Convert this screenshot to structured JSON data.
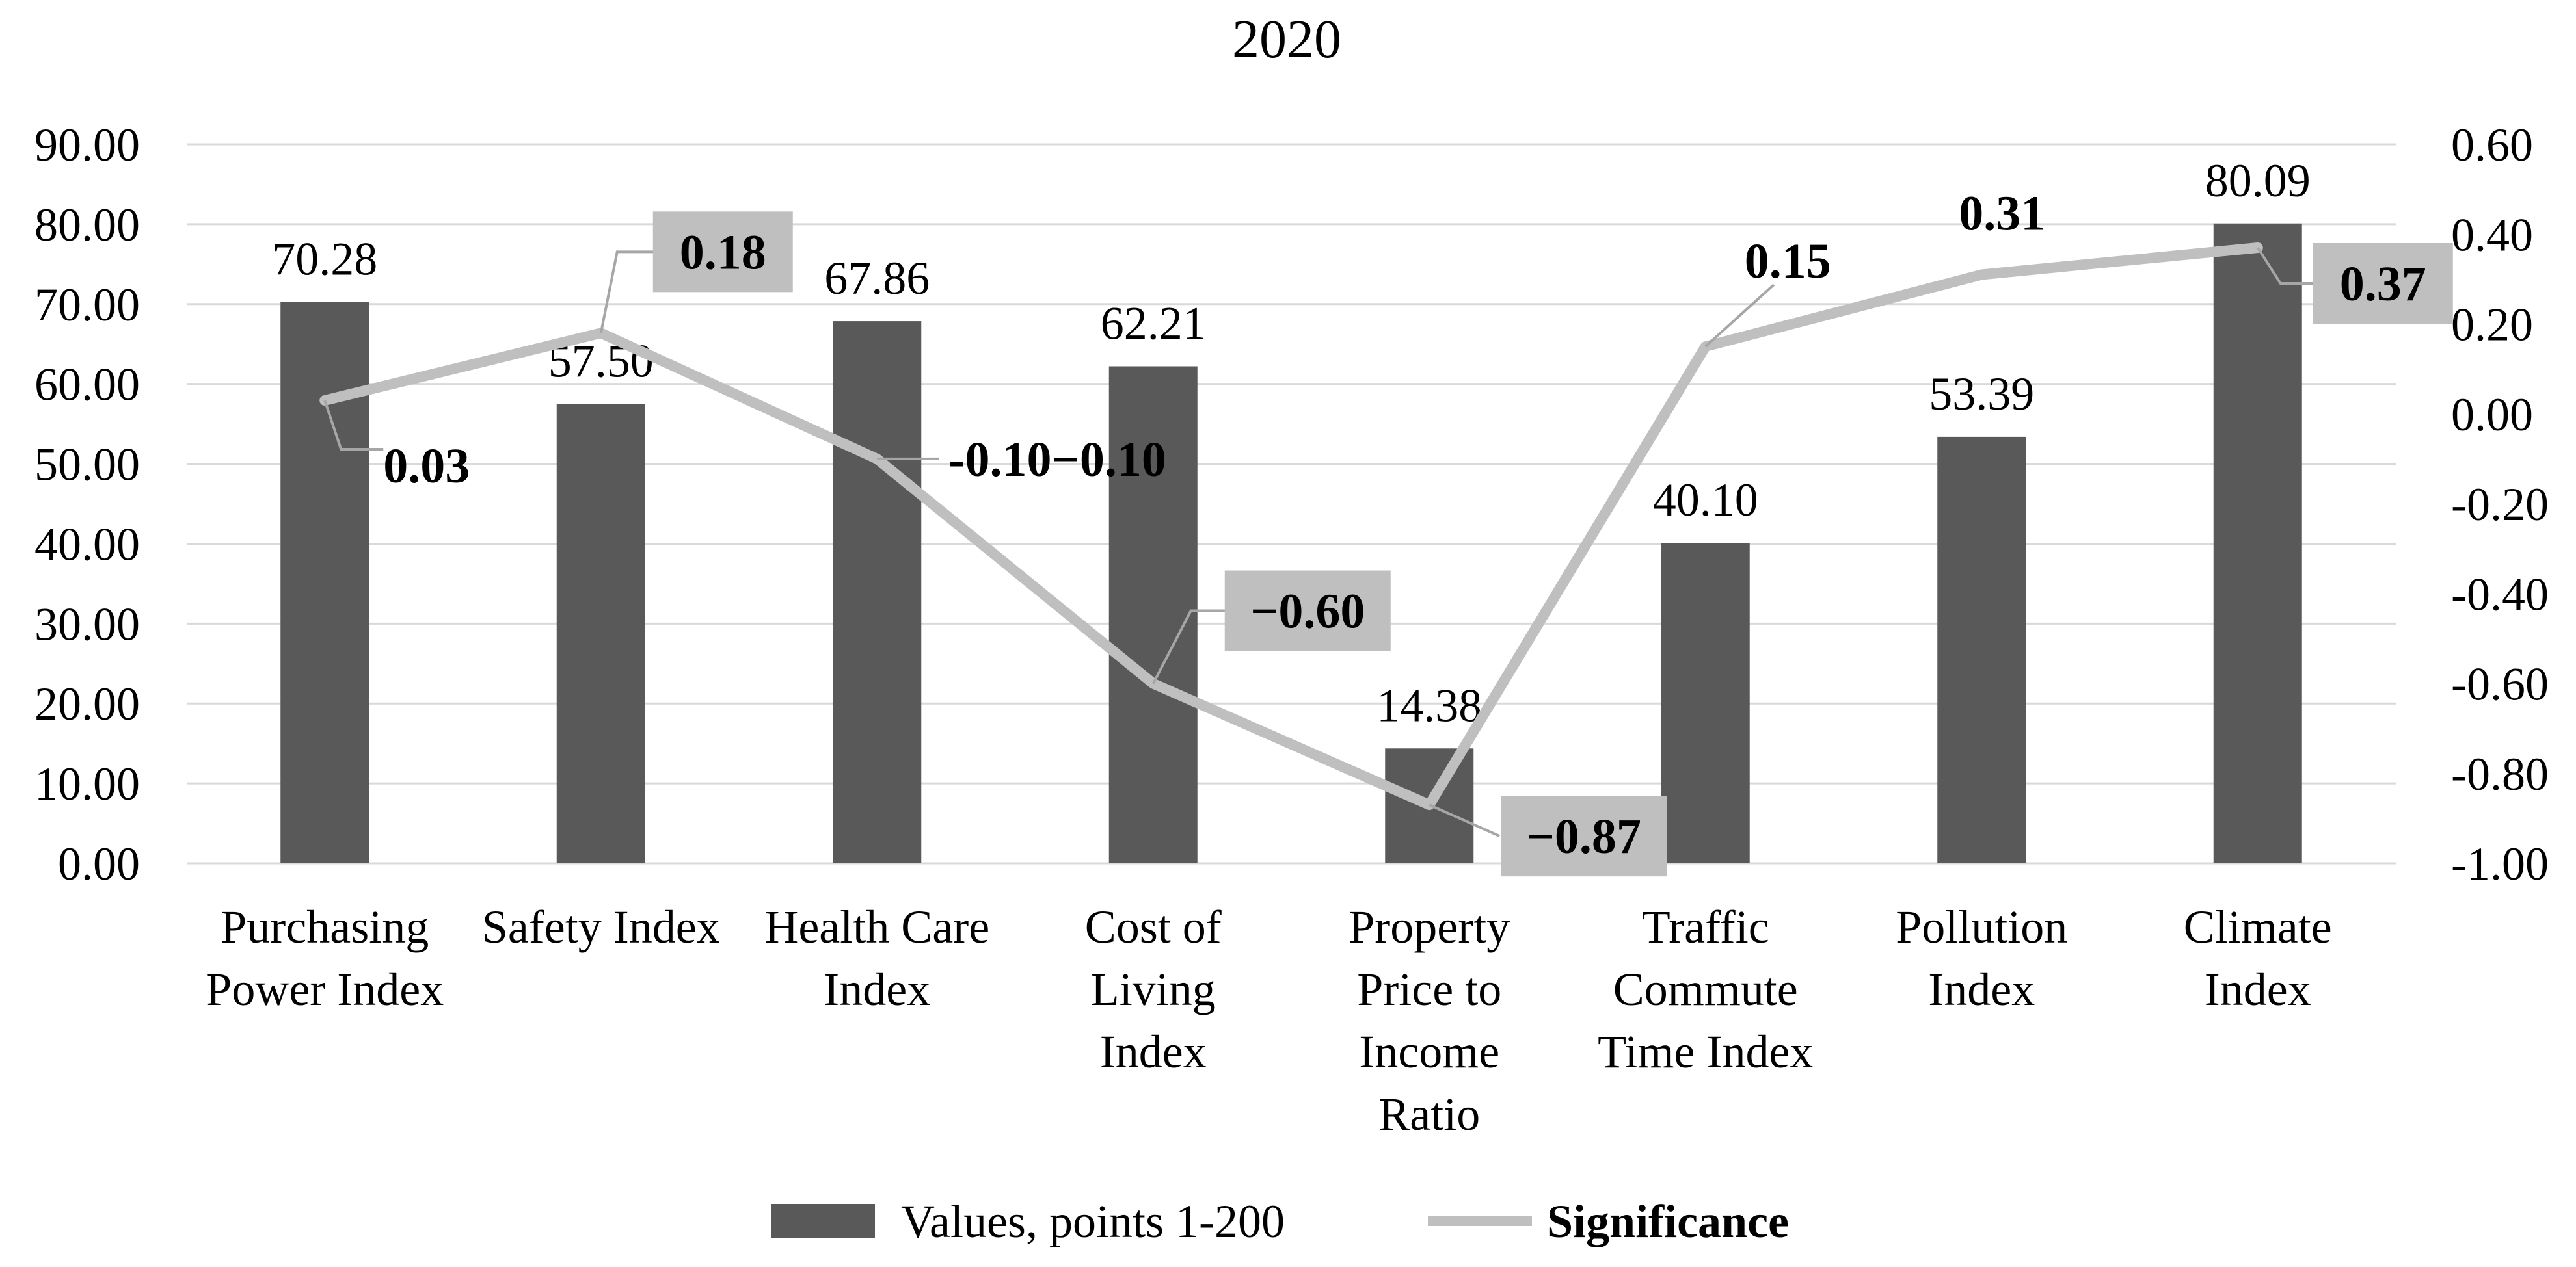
{
  "chart_data": {
    "type": "bar+line",
    "title": "2020",
    "categories": [
      [
        "Purchasing",
        "Power Index"
      ],
      [
        "Safety Index"
      ],
      [
        "Health Care",
        "Index"
      ],
      [
        "Cost of",
        "Living",
        "Index"
      ],
      [
        "Property",
        "Price to",
        "Income",
        "Ratio"
      ],
      [
        "Traffic",
        "Commute",
        "Time Index"
      ],
      [
        "Pollution",
        "Index"
      ],
      [
        "Climate",
        "Index"
      ]
    ],
    "series": [
      {
        "name": "Values, points 1-200",
        "type": "bar",
        "axis": "left",
        "color": "#595959",
        "values": [
          70.28,
          57.5,
          67.86,
          62.21,
          14.38,
          40.1,
          53.39,
          80.09
        ],
        "labels": [
          "70.28",
          "57.50",
          "67.86",
          "62.21",
          "14.38",
          "40.10",
          "53.39",
          "80.09"
        ]
      },
      {
        "name": "Significance",
        "type": "line",
        "axis": "right",
        "color": "#bfbfbf",
        "values": [
          0.03,
          0.18,
          -0.1,
          -0.6,
          -0.87,
          0.15,
          0.31,
          0.37
        ],
        "labels": [
          "0.03",
          "0.18",
          "-0.10−0.10",
          "−0.60",
          "−0.87",
          "0.15",
          "0.31",
          "0.37"
        ],
        "label_boxed": [
          false,
          true,
          false,
          true,
          true,
          false,
          false,
          true
        ]
      }
    ],
    "y_left": {
      "min": 0,
      "max": 90,
      "step": 10,
      "ticks": [
        "0.00",
        "10.00",
        "20.00",
        "30.00",
        "40.00",
        "50.00",
        "60.00",
        "70.00",
        "80.00",
        "90.00"
      ]
    },
    "y_right": {
      "min": -1.0,
      "max": 0.6,
      "step": 0.2,
      "ticks": [
        "-1.00",
        "-0.80",
        "-0.60",
        "-0.40",
        "-0.20",
        "0.00",
        "0.20",
        "0.40",
        "0.60"
      ]
    },
    "grid": true,
    "legend_position": "bottom-center",
    "colors": {
      "bar": "#595959",
      "line": "#bfbfbf",
      "grid": "#d9d9d9",
      "label_box": "#bfbfbf",
      "leader": "#a6a6a6"
    }
  }
}
